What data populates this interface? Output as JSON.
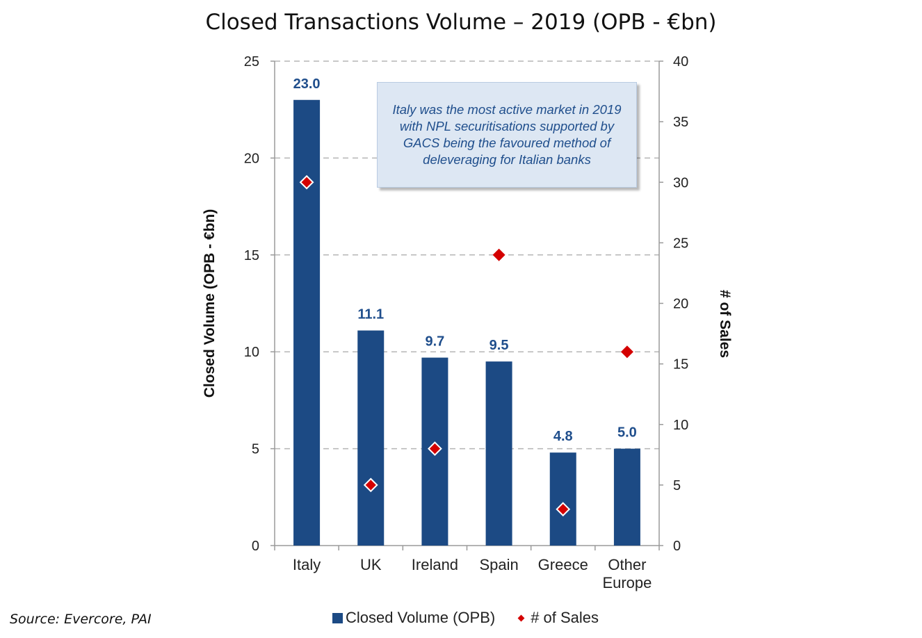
{
  "title": "Closed Transactions Volume – 2019 (OPB - €bn)",
  "callout_text": "Italy was the most active market in 2019 with NPL securitisations supported by GACS being the favoured method of deleveraging for Italian banks",
  "source": "Source: Evercore, PAI",
  "legend": {
    "bar_label": "Closed Volume (OPB)",
    "dot_label": "# of Sales"
  },
  "colors": {
    "bar": "#1c4a84",
    "datalabel": "#1f4e8c",
    "marker": "#d40000",
    "callout_bg": "#dde7f3"
  },
  "chart_data": {
    "type": "bar",
    "categories": [
      [
        "Italy"
      ],
      [
        "UK"
      ],
      [
        "Ireland"
      ],
      [
        "Spain"
      ],
      [
        "Greece"
      ],
      [
        "Other",
        "Europe"
      ]
    ],
    "series": [
      {
        "name": "Closed Volume (OPB)",
        "axis": "left",
        "values": [
          23.0,
          11.1,
          9.7,
          9.5,
          4.8,
          5.0
        ],
        "labels": [
          "23.0",
          "11.1",
          "9.7",
          "9.5",
          "4.8",
          "5.0"
        ]
      },
      {
        "name": "# of Sales",
        "axis": "right",
        "marker": "diamond",
        "values": [
          30,
          5,
          8,
          24,
          3,
          16
        ]
      }
    ],
    "y_left": {
      "label": "Closed Volume (OPB - €bn)",
      "range": [
        0,
        25
      ],
      "ticks": [
        0,
        5,
        10,
        15,
        20,
        25
      ]
    },
    "y_right": {
      "label": "# of Sales",
      "range": [
        0,
        40
      ],
      "ticks": [
        0,
        5,
        10,
        15,
        20,
        25,
        30,
        35,
        40
      ]
    },
    "grid": "dashed horizontal",
    "legend_position": "bottom"
  }
}
